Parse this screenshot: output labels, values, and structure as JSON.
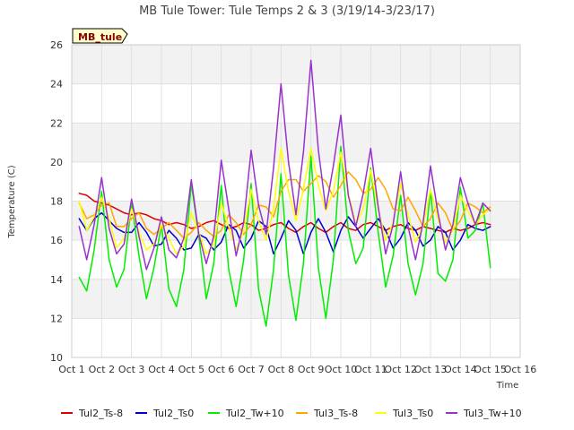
{
  "chart_data": {
    "type": "line",
    "title": "MB Tule Tower: Tule Temps 2 & 3 (3/19/14-3/23/17)",
    "xlabel": "Time",
    "ylabel": "Temperature (C)",
    "badge": "MB_tule",
    "xlim": [
      1,
      16
    ],
    "ylim": [
      10,
      26
    ],
    "x_ticks": [
      1,
      2,
      3,
      4,
      5,
      6,
      7,
      8,
      9,
      10,
      11,
      12,
      13,
      14,
      15,
      16
    ],
    "x_tick_labels": [
      "Oct 1",
      "Oct 2",
      "Oct 3",
      "Oct 4",
      "Oct 5",
      "Oct 6",
      "Oct 7",
      "Oct 8",
      "Oct 9",
      "Oct 10",
      "Oct 11",
      "Oct 12",
      "Oct 13",
      "Oct 14",
      "Oct 15",
      "Oct 16"
    ],
    "y_ticks": [
      10,
      12,
      14,
      16,
      18,
      20,
      22,
      24,
      26
    ],
    "y_tick_labels": [
      "10",
      "12",
      "14",
      "16",
      "18",
      "20",
      "22",
      "24",
      "26"
    ],
    "legend_position": "bottom",
    "series": [
      {
        "name": "Tul2_Ts-8",
        "color": "#dd0000",
        "x": [
          1.25,
          1.5,
          1.75,
          2.0,
          2.25,
          2.5,
          2.75,
          3.0,
          3.25,
          3.5,
          3.75,
          4.0,
          4.25,
          4.5,
          4.75,
          5.0,
          5.25,
          5.5,
          5.75,
          6.0,
          6.25,
          6.5,
          6.75,
          7.0,
          7.25,
          7.5,
          7.75,
          8.0,
          8.25,
          8.5,
          8.75,
          9.0,
          9.25,
          9.5,
          9.75,
          10.0,
          10.25,
          10.5,
          10.75,
          11.0,
          11.25,
          11.5,
          11.75,
          12.0,
          12.25,
          12.5,
          12.75,
          13.0,
          13.25,
          13.5,
          13.75,
          14.0,
          14.25,
          14.5,
          14.75,
          15.0
        ],
        "y": [
          18.4,
          18.3,
          18.0,
          17.9,
          17.8,
          17.6,
          17.4,
          17.3,
          17.4,
          17.3,
          17.1,
          17.0,
          16.8,
          16.9,
          16.8,
          16.6,
          16.7,
          16.9,
          17.0,
          16.8,
          16.6,
          16.7,
          16.9,
          16.8,
          16.5,
          16.6,
          16.8,
          16.9,
          16.6,
          16.4,
          16.7,
          16.9,
          16.6,
          16.4,
          16.7,
          16.9,
          16.6,
          16.5,
          16.8,
          16.9,
          16.7,
          16.5,
          16.7,
          16.8,
          16.6,
          16.5,
          16.7,
          16.6,
          16.5,
          16.4,
          16.6,
          16.5,
          16.6,
          16.8,
          16.9,
          16.8
        ]
      },
      {
        "name": "Tul2_Ts0",
        "color": "#0000cc",
        "x": [
          1.25,
          1.5,
          1.75,
          2.0,
          2.25,
          2.5,
          2.75,
          3.0,
          3.25,
          3.5,
          3.75,
          4.0,
          4.25,
          4.5,
          4.75,
          5.0,
          5.25,
          5.5,
          5.75,
          6.0,
          6.25,
          6.5,
          6.75,
          7.0,
          7.25,
          7.5,
          7.75,
          8.0,
          8.25,
          8.5,
          8.75,
          9.0,
          9.25,
          9.5,
          9.75,
          10.0,
          10.25,
          10.5,
          10.75,
          11.0,
          11.25,
          11.5,
          11.75,
          12.0,
          12.25,
          12.5,
          12.75,
          13.0,
          13.25,
          13.5,
          13.75,
          14.0,
          14.25,
          14.5,
          14.75,
          15.0
        ],
        "y": [
          17.1,
          16.5,
          17.1,
          17.4,
          17.0,
          16.6,
          16.4,
          16.4,
          16.9,
          16.4,
          15.7,
          15.8,
          16.5,
          16.1,
          15.5,
          15.6,
          16.3,
          16.1,
          15.5,
          15.9,
          16.8,
          16.5,
          15.6,
          16.1,
          17.0,
          16.7,
          15.3,
          16.1,
          17.0,
          16.5,
          15.3,
          16.4,
          17.1,
          16.4,
          15.4,
          16.5,
          17.2,
          16.7,
          16.1,
          16.6,
          17.1,
          16.5,
          15.6,
          16.1,
          16.9,
          16.5,
          15.7,
          16.0,
          16.7,
          16.4,
          15.5,
          16.0,
          16.8,
          16.6,
          16.5,
          16.7
        ]
      },
      {
        "name": "Tul2_Tw+10",
        "color": "#00ee00",
        "x": [
          1.25,
          1.5,
          1.75,
          2.0,
          2.25,
          2.5,
          2.75,
          3.0,
          3.25,
          3.5,
          3.75,
          4.0,
          4.25,
          4.5,
          4.75,
          5.0,
          5.25,
          5.5,
          5.75,
          6.0,
          6.25,
          6.5,
          6.75,
          7.0,
          7.25,
          7.5,
          7.75,
          8.0,
          8.25,
          8.5,
          8.75,
          9.0,
          9.25,
          9.5,
          9.75,
          10.0,
          10.25,
          10.5,
          10.75,
          11.0,
          11.25,
          11.5,
          11.75,
          12.0,
          12.25,
          12.5,
          12.75,
          13.0,
          13.25,
          13.5,
          13.75,
          14.0,
          14.25,
          14.5,
          14.75,
          15.0
        ],
        "y": [
          14.1,
          13.4,
          15.5,
          18.5,
          15.0,
          13.6,
          14.5,
          17.9,
          15.2,
          13.0,
          14.6,
          16.8,
          13.5,
          12.6,
          14.5,
          18.9,
          16.2,
          13.0,
          14.8,
          18.8,
          14.5,
          12.6,
          15.0,
          18.9,
          13.5,
          11.6,
          14.5,
          19.4,
          14.2,
          11.9,
          14.8,
          20.3,
          14.6,
          12.0,
          15.0,
          20.8,
          16.5,
          14.8,
          15.6,
          19.7,
          16.4,
          13.6,
          15.2,
          18.3,
          14.8,
          13.2,
          14.8,
          18.6,
          14.3,
          13.9,
          15.0,
          18.7,
          16.1,
          16.5,
          17.9,
          14.6
        ]
      },
      {
        "name": "Tul3_Ts-8",
        "color": "#ffa500",
        "x": [
          1.25,
          1.5,
          1.75,
          2.0,
          2.25,
          2.5,
          2.75,
          3.0,
          3.25,
          3.5,
          3.75,
          4.0,
          4.25,
          4.5,
          4.75,
          5.0,
          5.25,
          5.5,
          5.75,
          6.0,
          6.25,
          6.5,
          6.75,
          7.0,
          7.25,
          7.5,
          7.75,
          8.0,
          8.25,
          8.5,
          8.75,
          9.0,
          9.25,
          9.5,
          9.75,
          10.0,
          10.25,
          10.5,
          10.75,
          11.0,
          11.25,
          11.5,
          11.75,
          12.0,
          12.25,
          12.5,
          12.75,
          13.0,
          13.25,
          13.5,
          13.75,
          14.0,
          14.25,
          14.5,
          14.75,
          15.0
        ],
        "y": [
          17.9,
          17.1,
          17.3,
          17.8,
          17.9,
          16.7,
          16.7,
          17.1,
          17.4,
          16.6,
          16.3,
          16.6,
          16.9,
          16.5,
          16.1,
          16.4,
          16.9,
          16.5,
          16.2,
          16.5,
          17.3,
          16.9,
          16.3,
          16.8,
          17.8,
          17.7,
          17.2,
          18.5,
          19.1,
          19.1,
          18.5,
          18.9,
          19.3,
          19.0,
          18.2,
          18.8,
          19.5,
          19.1,
          18.4,
          18.6,
          19.2,
          18.6,
          17.6,
          17.5,
          18.2,
          17.5,
          16.7,
          17.1,
          17.9,
          17.4,
          16.5,
          17.0,
          17.9,
          17.7,
          17.4,
          17.7
        ]
      },
      {
        "name": "Tul3_Ts0",
        "color": "#ffff00",
        "x": [
          1.25,
          1.5,
          1.75,
          2.0,
          2.25,
          2.5,
          2.75,
          3.0,
          3.25,
          3.5,
          3.75,
          4.0,
          4.25,
          4.5,
          4.75,
          5.0,
          5.25,
          5.5,
          5.75,
          6.0,
          6.25,
          6.5,
          6.75,
          7.0,
          7.25,
          7.5,
          7.75,
          8.0,
          8.25,
          8.5,
          8.75,
          9.0,
          9.25,
          9.5,
          9.75,
          10.0,
          10.25,
          10.5,
          10.75,
          11.0,
          11.25,
          11.5,
          11.75,
          12.0,
          12.25,
          12.5,
          12.75,
          13.0,
          13.25,
          13.5,
          13.75,
          14.0,
          14.25,
          14.5,
          14.75,
          15.0
        ],
        "y": [
          18.0,
          16.5,
          17.2,
          18.2,
          17.1,
          15.6,
          16.1,
          17.6,
          16.4,
          15.5,
          15.8,
          16.8,
          16.1,
          15.3,
          15.7,
          17.4,
          16.4,
          15.3,
          15.8,
          17.9,
          16.7,
          15.5,
          16.5,
          18.6,
          17.0,
          16.0,
          17.6,
          20.7,
          18.5,
          17.0,
          18.6,
          20.7,
          18.8,
          17.5,
          18.5,
          20.5,
          18.4,
          16.8,
          17.6,
          19.6,
          17.6,
          16.0,
          16.9,
          18.9,
          17.3,
          15.9,
          16.7,
          18.6,
          17.1,
          15.9,
          16.5,
          18.3,
          17.5,
          16.8,
          17.3,
          17.6
        ]
      },
      {
        "name": "Tul3_Tw+10",
        "color": "#9932cc",
        "x": [
          1.25,
          1.5,
          1.75,
          2.0,
          2.25,
          2.5,
          2.75,
          3.0,
          3.25,
          3.5,
          3.75,
          4.0,
          4.25,
          4.5,
          4.75,
          5.0,
          5.25,
          5.5,
          5.75,
          6.0,
          6.25,
          6.5,
          6.75,
          7.0,
          7.25,
          7.5,
          7.75,
          8.0,
          8.25,
          8.5,
          8.75,
          9.0,
          9.25,
          9.5,
          9.75,
          10.0,
          10.25,
          10.5,
          10.75,
          11.0,
          11.25,
          11.5,
          11.75,
          12.0,
          12.25,
          12.5,
          12.75,
          13.0,
          13.25,
          13.5,
          13.75,
          14.0,
          14.25,
          14.5,
          14.75,
          15.0
        ],
        "y": [
          16.7,
          15.0,
          16.8,
          19.2,
          16.6,
          15.3,
          15.8,
          18.1,
          16.2,
          14.5,
          15.6,
          17.2,
          15.5,
          15.1,
          16.1,
          19.1,
          16.3,
          14.8,
          16.2,
          20.1,
          17.6,
          15.2,
          16.9,
          20.6,
          17.8,
          16.3,
          19.7,
          24.0,
          20.0,
          17.3,
          20.5,
          25.2,
          20.6,
          17.6,
          19.8,
          22.4,
          18.3,
          16.7,
          18.4,
          20.7,
          17.7,
          15.3,
          16.8,
          19.5,
          16.7,
          15.0,
          16.9,
          19.8,
          17.4,
          15.5,
          16.8,
          19.2,
          17.9,
          16.8,
          17.9,
          17.5
        ]
      }
    ]
  }
}
